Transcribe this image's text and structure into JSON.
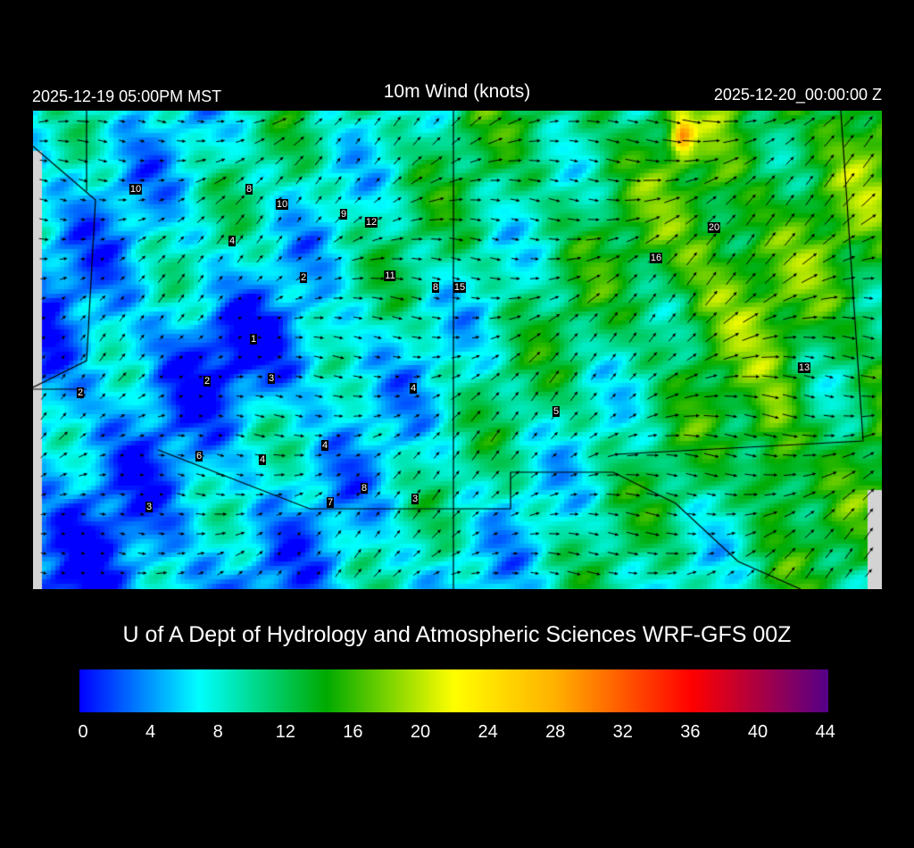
{
  "header": {
    "local_time": "2025-12-19 05:00PM MST",
    "title": "10m Wind (knots)",
    "valid_time": "2025-12-20_00:00:00 Z"
  },
  "credit": "U of A Dept of Hydrology and Atmospheric Sciences WRF-GFS 00Z",
  "colorbar": {
    "ticks": [
      "0",
      "4",
      "8",
      "12",
      "16",
      "20",
      "24",
      "28",
      "32",
      "36",
      "40",
      "44"
    ],
    "range": [
      0,
      44
    ],
    "stops": [
      {
        "value": 0,
        "color": "#0000ff"
      },
      {
        "value": 7,
        "color": "#00ffff"
      },
      {
        "value": 14.5,
        "color": "#00aa00"
      },
      {
        "value": 22,
        "color": "#ffff00"
      },
      {
        "value": 28,
        "color": "#ffb000"
      },
      {
        "value": 36,
        "color": "#ff0000"
      },
      {
        "value": 44,
        "color": "#550088"
      }
    ]
  },
  "station_labels": [
    "10",
    "8",
    "10",
    "9",
    "12",
    "20",
    "4",
    "16",
    "2",
    "11",
    "8",
    "15",
    "1",
    "13",
    "2",
    "3",
    "4",
    "2",
    "5",
    "6",
    "4",
    "4",
    "8",
    "7",
    "3",
    "3"
  ]
}
